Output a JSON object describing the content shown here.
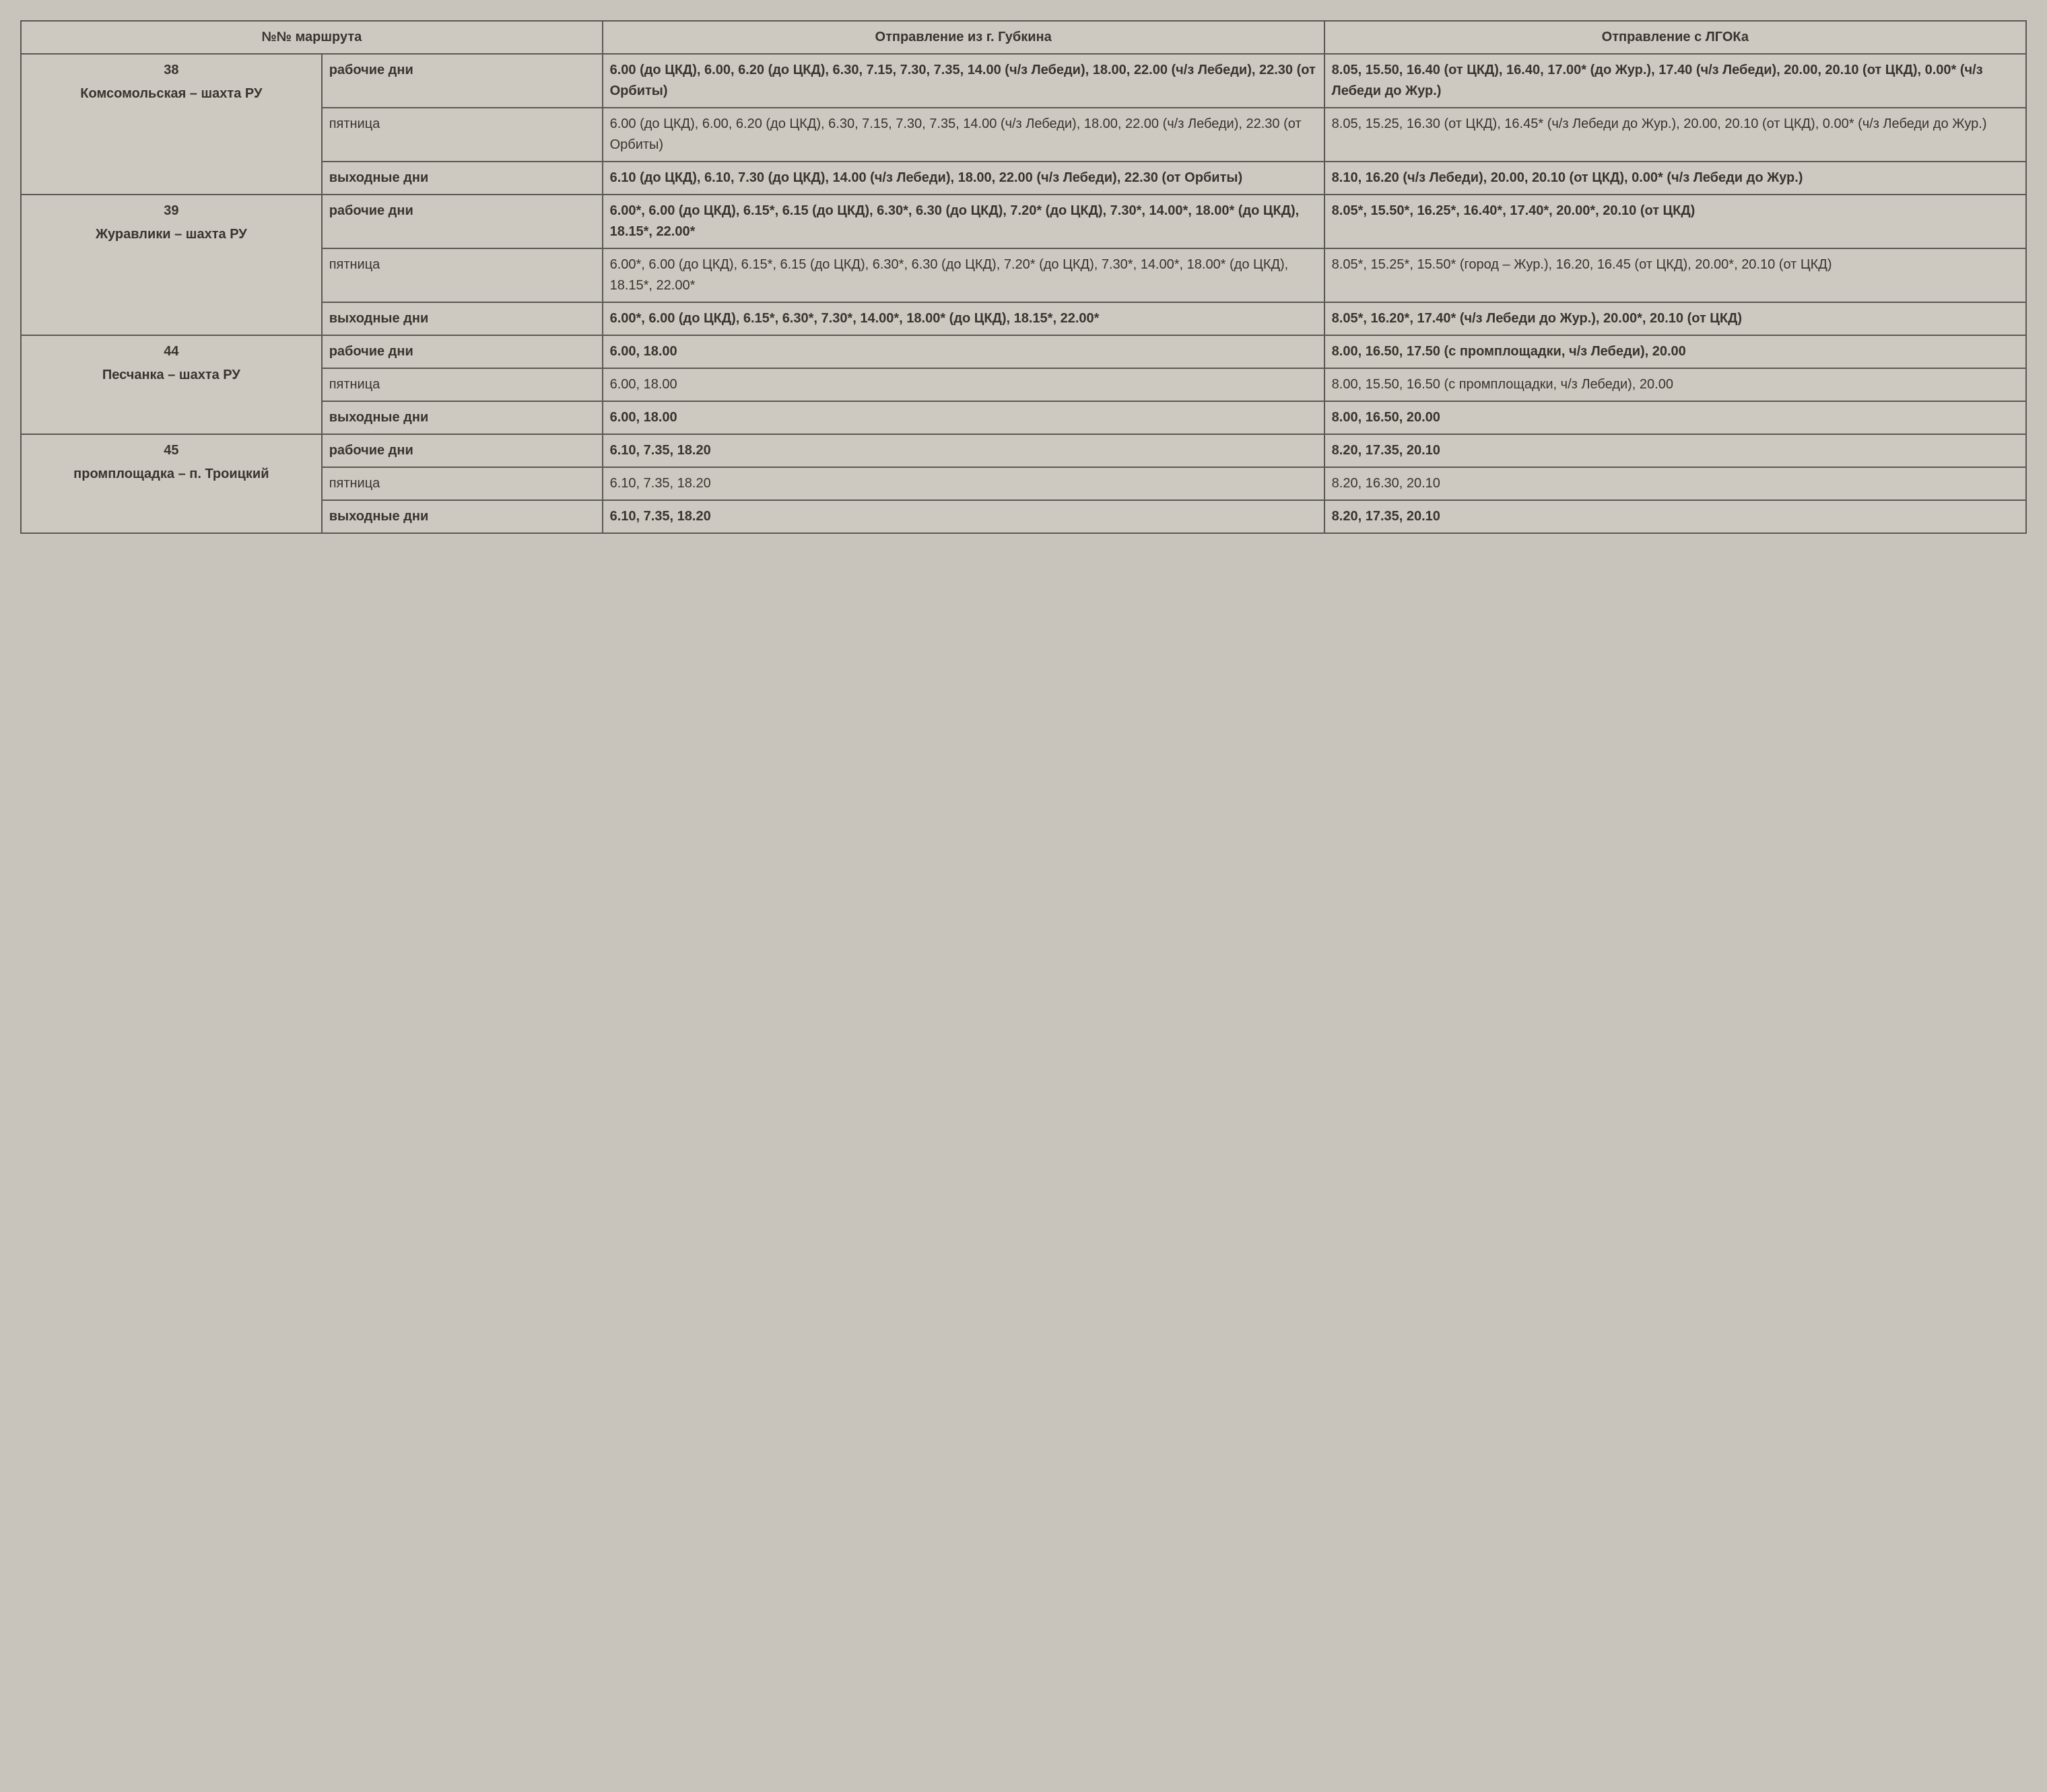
{
  "headers": {
    "routeNo": "№№ маршрута",
    "depGubkin": "Отправление из г. Губкина",
    "depLGOK": "Отправление с ЛГОКа"
  },
  "routes": [
    {
      "num": "38",
      "name": "Комсомольская – шахта РУ",
      "rows": [
        {
          "day": "рабочие дни",
          "dayBold": true,
          "gubkin": "6.00 (до ЦКД), 6.00, 6.20 (до ЦКД), 6.30, 7.15, 7.30, 7.35, 14.00 (ч/з Лебеди), 18.00, 22.00 (ч/з Лебеди), 22.30 (от Орбиты)",
          "gubkinBold": true,
          "lgok": "8.05, 15.50, 16.40 (от ЦКД), 16.40, 17.00* (до Жур.), 17.40 (ч/з Лебеди), 20.00, 20.10 (от ЦКД), 0.00* (ч/з Лебеди до Жур.)",
          "lgokBold": true
        },
        {
          "day": "пятница",
          "dayBold": false,
          "gubkin": "6.00 (до ЦКД), 6.00, 6.20 (до ЦКД), 6.30, 7.15, 7.30, 7.35, 14.00 (ч/з Лебеди), 18.00, 22.00 (ч/з Лебеди), 22.30 (от Орбиты)",
          "gubkinBold": false,
          "lgok": "8.05, 15.25, 16.30 (от ЦКД), 16.45* (ч/з Лебеди до Жур.), 20.00, 20.10 (от ЦКД), 0.00* (ч/з Лебеди до Жур.)",
          "lgokBold": false
        },
        {
          "day": "выходные дни",
          "dayBold": true,
          "gubkin": "6.10 (до ЦКД), 6.10, 7.30 (до ЦКД), 14.00 (ч/з Лебеди), 18.00, 22.00 (ч/з Лебеди), 22.30 (от Орбиты)",
          "gubkinBold": true,
          "lgok": "8.10, 16.20 (ч/з Лебеди), 20.00, 20.10 (от ЦКД), 0.00* (ч/з Лебеди до Жур.)",
          "lgokBold": true
        }
      ]
    },
    {
      "num": "39",
      "name": "Журавлики – шахта РУ",
      "rows": [
        {
          "day": "рабочие дни",
          "dayBold": true,
          "gubkin": "6.00*, 6.00 (до ЦКД), 6.15*, 6.15 (до ЦКД), 6.30*, 6.30 (до ЦКД), 7.20* (до ЦКД), 7.30*, 14.00*, 18.00* (до ЦКД), 18.15*, 22.00*",
          "gubkinBold": true,
          "lgok": "8.05*, 15.50*, 16.25*, 16.40*, 17.40*, 20.00*, 20.10 (от ЦКД)",
          "lgokBold": true
        },
        {
          "day": "пятница",
          "dayBold": false,
          "gubkin": "6.00*, 6.00 (до ЦКД), 6.15*, 6.15 (до ЦКД), 6.30*, 6.30 (до ЦКД), 7.20* (до ЦКД), 7.30*, 14.00*, 18.00* (до ЦКД), 18.15*, 22.00*",
          "gubkinBold": false,
          "lgok": "8.05*, 15.25*, 15.50* (город – Жур.), 16.20, 16.45 (от ЦКД), 20.00*, 20.10 (от ЦКД)",
          "lgokBold": false
        },
        {
          "day": "выходные дни",
          "dayBold": true,
          "gubkin": "6.00*, 6.00 (до ЦКД), 6.15*, 6.30*, 7.30*, 14.00*, 18.00* (до ЦКД), 18.15*, 22.00*",
          "gubkinBold": true,
          "lgok": "8.05*, 16.20*, 17.40* (ч/з Лебеди до Жур.), 20.00*, 20.10 (от ЦКД)",
          "lgokBold": true
        }
      ]
    },
    {
      "num": "44",
      "name": "Песчанка – шахта РУ",
      "rows": [
        {
          "day": "рабочие дни",
          "dayBold": true,
          "gubkin": "6.00, 18.00",
          "gubkinBold": true,
          "lgok": "8.00, 16.50, 17.50 (с промплощадки, ч/з Лебеди), 20.00",
          "lgokBold": true
        },
        {
          "day": "пятница",
          "dayBold": false,
          "gubkin": "6.00, 18.00",
          "gubkinBold": false,
          "lgok": "8.00, 15.50, 16.50 (с промплощадки, ч/з Лебеди), 20.00",
          "lgokBold": false
        },
        {
          "day": "выходные дни",
          "dayBold": true,
          "gubkin": "6.00, 18.00",
          "gubkinBold": true,
          "lgok": "8.00, 16.50, 20.00",
          "lgokBold": true
        }
      ]
    },
    {
      "num": "45",
      "name": "промплощадка – п. Троицкий",
      "rows": [
        {
          "day": "рабочие дни",
          "dayBold": true,
          "gubkin": "6.10, 7.35, 18.20",
          "gubkinBold": true,
          "lgok": "8.20, 17.35, 20.10",
          "lgokBold": true
        },
        {
          "day": "пятница",
          "dayBold": false,
          "gubkin": "6.10, 7.35, 18.20",
          "gubkinBold": false,
          "lgok": "8.20, 16.30, 20.10",
          "lgokBold": false
        },
        {
          "day": "выходные дни",
          "dayBold": true,
          "gubkin": "6.10, 7.35, 18.20",
          "gubkinBold": true,
          "lgok": "8.20, 17.35, 20.10",
          "lgokBold": true
        }
      ]
    }
  ],
  "styling": {
    "background": "#c8c4bc",
    "tableBg": "#cdc9c1",
    "borderColor": "#5a5852",
    "textColor": "#38342e",
    "fontSizePt": 20,
    "lineHeight": 1.55,
    "colWidths": [
      "15%",
      "14%",
      "36%",
      "35%"
    ]
  }
}
